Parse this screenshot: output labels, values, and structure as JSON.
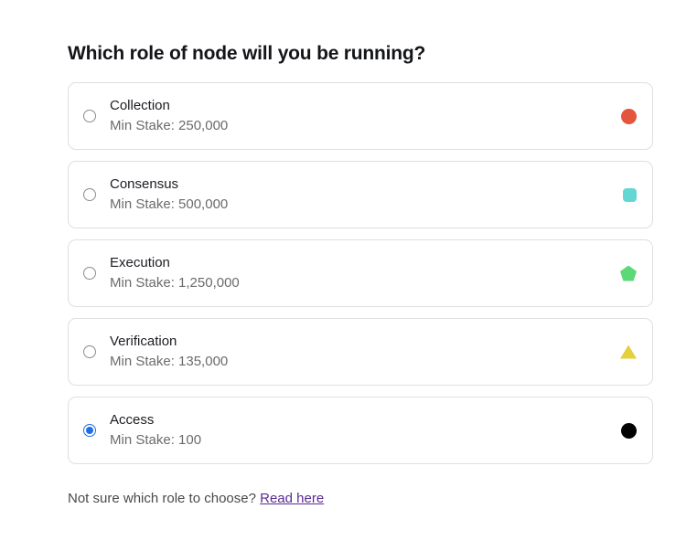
{
  "page": {
    "heading": "Which role of node will you be running?",
    "footer_question": "Not sure which role to choose? ",
    "footer_link": "Read here"
  },
  "options": [
    {
      "id": "collection",
      "name": "Collection",
      "min_stake": "Min Stake: 250,000",
      "icon": "red-circle-icon",
      "shape": "circle",
      "color": "#e4563c",
      "selected": false
    },
    {
      "id": "consensus",
      "name": "Consensus",
      "min_stake": "Min Stake: 500,000",
      "icon": "teal-square-icon",
      "shape": "square",
      "color": "#63d8d2",
      "selected": false
    },
    {
      "id": "execution",
      "name": "Execution",
      "min_stake": "Min Stake: 1,250,000",
      "icon": "green-pentagon-icon",
      "shape": "pentagon",
      "color": "#5bd977",
      "selected": false
    },
    {
      "id": "verification",
      "name": "Verification",
      "min_stake": "Min Stake: 135,000",
      "icon": "yellow-triangle-icon",
      "shape": "triangle",
      "color": "#e4cf3e",
      "selected": false
    },
    {
      "id": "access",
      "name": "Access",
      "min_stake": "Min Stake: 100",
      "icon": "black-circle-icon",
      "shape": "circle",
      "color": "#000000",
      "selected": true
    }
  ],
  "colors": {
    "accent_blue": "#1d6fea",
    "link": "#5b2c93",
    "card_border": "#dfdfdf"
  }
}
